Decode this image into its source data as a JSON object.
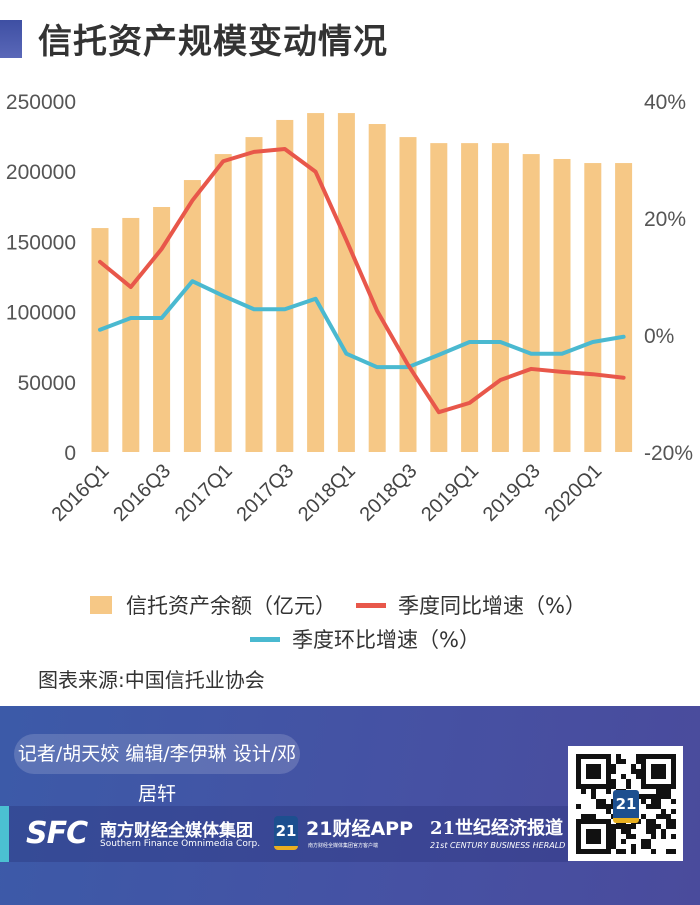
{
  "title": "信托资产规模变动情况",
  "legend": {
    "bar": "信托资产余额（亿元）",
    "yoy": "季度同比增速（%）",
    "qoq": "季度环比增速（%）"
  },
  "source": "图表来源:中国信托业协会",
  "footer": {
    "credits": "记者/胡天姣  编辑/李伊琳  设计/邓居轩",
    "sfc_logo": "SFC",
    "sfc_cn": "南方财经全媒体集团",
    "sfc_en": "Southern Finance Omnimedia Corp.",
    "app_badge": "21",
    "app_name": "21财经APP",
    "app_sub": "南方财经全媒体集团官方客户端",
    "herald_cn": "21世纪经济报道",
    "herald_en": "21st CENTURY BUSINESS HERALD",
    "qr_badge": "21"
  },
  "colors": {
    "bar": "#f6c886",
    "yoy": "#e8574a",
    "qoq": "#4ab9d0",
    "footer": "#4051a3"
  },
  "chart_data": {
    "type": "bar+line",
    "title": "信托资产规模变动情况",
    "categories": [
      "2016Q1",
      "2016Q2",
      "2016Q3",
      "2016Q4",
      "2017Q1",
      "2017Q2",
      "2017Q3",
      "2017Q4",
      "2018Q1",
      "2018Q2",
      "2018Q3",
      "2018Q4",
      "2019Q1",
      "2019Q2",
      "2019Q3",
      "2019Q4",
      "2020Q1",
      "2020Q2"
    ],
    "x_tick_labels": [
      "2016Q1",
      "2016Q3",
      "2017Q1",
      "2017Q3",
      "2018Q1",
      "2018Q3",
      "2019Q1",
      "2019Q3",
      "2020Q1"
    ],
    "y_left": {
      "ylim": [
        0,
        250000
      ],
      "ticks": [
        "0",
        "50000",
        "100000",
        "150000",
        "200000",
        "250000"
      ]
    },
    "y_right": {
      "ylim": [
        -20,
        40
      ],
      "ticks": [
        "-20%",
        "0%",
        "20%",
        "40%"
      ]
    },
    "series": [
      {
        "name": "信托资产余额（亿元）",
        "type": "bar",
        "axis": "left",
        "values": [
          159500,
          166700,
          174500,
          193700,
          212200,
          224300,
          236500,
          241400,
          241400,
          233600,
          224300,
          220000,
          220000,
          220000,
          212200,
          208700,
          205800,
          205800
        ]
      },
      {
        "name": "季度同比增速（%）",
        "type": "line",
        "axis": "right",
        "values": [
          12.5,
          8.2,
          14.7,
          23.0,
          29.7,
          31.3,
          31.8,
          27.9,
          16.2,
          4.1,
          -5.1,
          -13.2,
          -11.6,
          -7.7,
          -5.8,
          -6.3,
          -6.7,
          -7.3
        ]
      },
      {
        "name": "季度环比增速（%）",
        "type": "line",
        "axis": "right",
        "values": [
          0.9,
          2.9,
          2.9,
          9.2,
          6.7,
          4.4,
          4.4,
          6.2,
          -3.2,
          -5.5,
          -5.5,
          -3.4,
          -1.2,
          -1.2,
          -3.2,
          -3.2,
          -1.2,
          -0.3
        ]
      }
    ],
    "legend_position": "bottom",
    "grid": false
  }
}
